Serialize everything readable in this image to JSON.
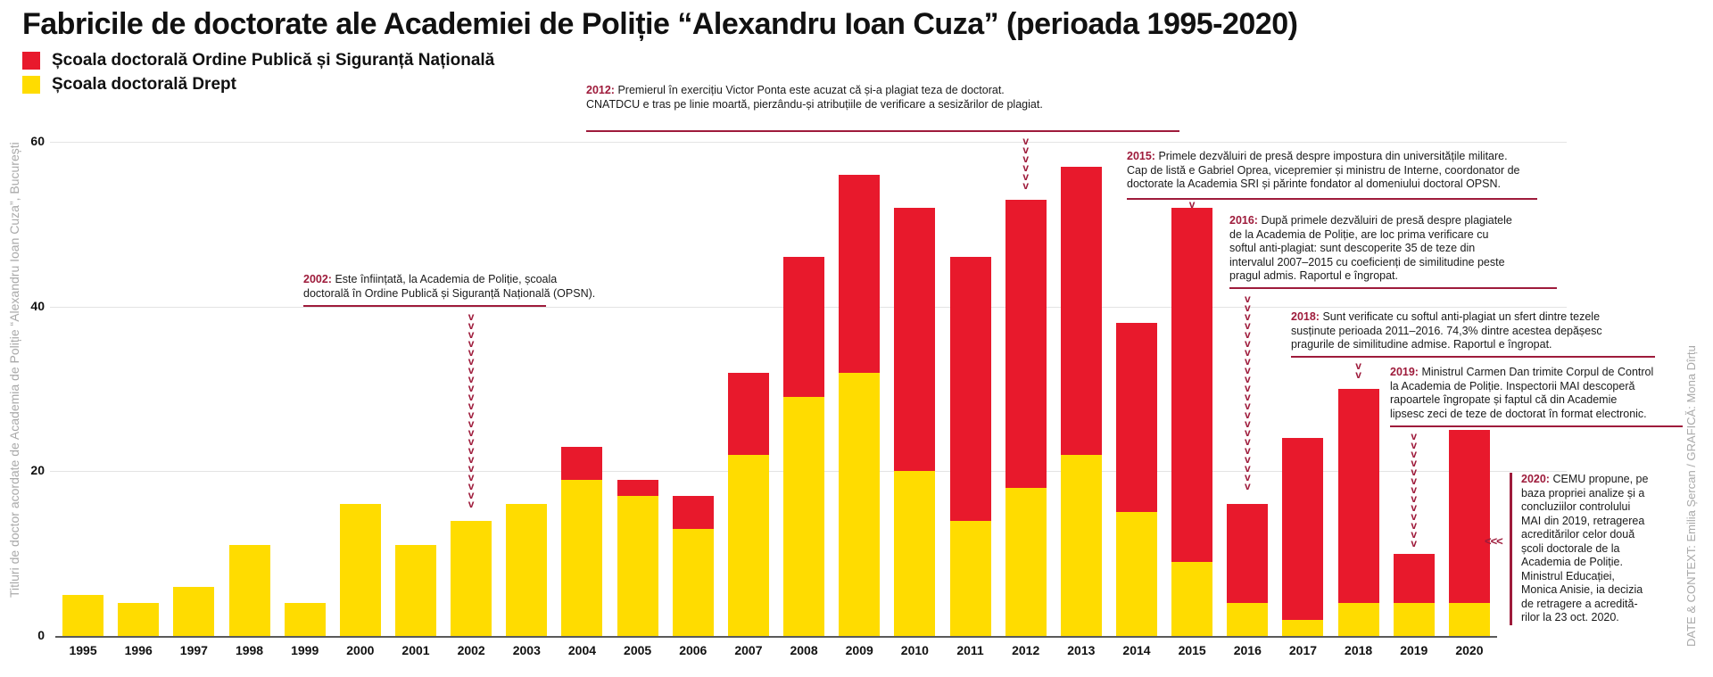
{
  "title": "Fabricile de doctorate ale Academiei de Poliție “Alexandru Ioan Cuza” (perioada 1995-2020)",
  "legend": {
    "items": [
      {
        "label": "Școala doctorală Ordine Publică și Siguranță Națională",
        "color": "#E8192C"
      },
      {
        "label": "Școala doctorală Drept",
        "color": "#FFDC00"
      }
    ]
  },
  "y_axis": {
    "title": "Titluri de doctor acordate de Academia de Poliție “Alexandru Ioan Cuza”, București",
    "ticks": [
      0,
      20,
      40,
      60
    ]
  },
  "credit": "DATE & CONTEXT: Emilia Șercan / GRAFICĂ: Mona Dîrțu",
  "colors": {
    "red": "#E8192C",
    "yellow": "#FFDC00",
    "annotation": "#9E1B3B",
    "gridline": "#e4e4e4",
    "axis_line": "#5a5a5a",
    "muted_text": "#a9a9a9"
  },
  "chart_data": {
    "type": "bar",
    "stacked": true,
    "title": "Fabricile de doctorate ale Academiei de Poliție “Alexandru Ioan Cuza” (perioada 1995-2020)",
    "categories": [
      1995,
      1996,
      1997,
      1998,
      1999,
      2000,
      2001,
      2002,
      2003,
      2004,
      2005,
      2006,
      2007,
      2008,
      2009,
      2010,
      2011,
      2012,
      2013,
      2014,
      2015,
      2016,
      2017,
      2018,
      2019,
      2020
    ],
    "series": [
      {
        "name": "Școala doctorală Drept",
        "color": "#FFDC00",
        "values": [
          5,
          4,
          6,
          11,
          4,
          16,
          11,
          14,
          16,
          19,
          17,
          13,
          22,
          29,
          32,
          20,
          14,
          18,
          22,
          15,
          9,
          4,
          2,
          4,
          4,
          4
        ]
      },
      {
        "name": "Școala doctorală Ordine Publică și Siguranță Națională",
        "color": "#E8192C",
        "values": [
          0,
          0,
          0,
          0,
          0,
          0,
          0,
          0,
          0,
          4,
          2,
          4,
          10,
          17,
          24,
          32,
          32,
          35,
          35,
          23,
          43,
          12,
          22,
          26,
          6,
          21
        ]
      }
    ],
    "totals": [
      5,
      4,
      6,
      11,
      4,
      16,
      11,
      14,
      16,
      23,
      19,
      17,
      32,
      46,
      56,
      52,
      46,
      53,
      57,
      38,
      52,
      16,
      24,
      30,
      10,
      25
    ],
    "ylim": [
      0,
      60
    ],
    "grid": true,
    "legend_position": "top-left",
    "ylabel": "Titluri de doctor acordate de Academia de Poliție “Alexandru Ioan Cuza”, București",
    "xlabel": ""
  },
  "annotations": [
    {
      "id": "2002",
      "year": "2002",
      "text": "Este înființată, la Academia de Poliție, școala\ndoctorală în Ordine Publică și Siguranță Națională (OPSN)."
    },
    {
      "id": "2012",
      "year": "2012",
      "text": "Premierul în exercițiu Victor Ponta este acuzat că și-a plagiat teza de doctorat.\nCNATDCU e tras pe linie moartă, pierzându-și atribuțiile de verificare a sesizărilor de plagiat."
    },
    {
      "id": "2015",
      "year": "2015",
      "text": "Primele dezvăluiri de presă despre impostura din universitățile militare.\nCap de listă e Gabriel Oprea, vicepremier și ministru de Interne, coordonator de\ndoctorate la Academia SRI și părinte fondator al domeniului doctoral OPSN."
    },
    {
      "id": "2016",
      "year": "2016",
      "text": "După primele dezvăluiri de presă despre plagiatele\nde la Academia de Poliție, are loc prima verificare cu\nsoftul anti-plagiat: sunt descoperite 35 de teze din\nintervalul 2007–2015 cu coeficienți de similitudine peste\npragul admis. Raportul e îngropat."
    },
    {
      "id": "2018",
      "year": "2018",
      "text": "Sunt verificate cu softul anti-plagiat un sfert dintre tezele\nsusținute perioada 2011–2016. 74,3% dintre acestea depășesc\npragurile de similitudine admise. Raportul e îngropat."
    },
    {
      "id": "2019",
      "year": "2019",
      "text": "Ministrul Carmen Dan trimite Corpul de Control\nla Academia de Poliție. Inspectorii MAI descoperă\nrapoartele îngropate și faptul că din Academie\nlipsesc zeci de teze de doctorat în format electronic."
    },
    {
      "id": "2020",
      "year": "2020",
      "marker": "<<<",
      "text": "CEMU propune, pe\nbaza propriei analize și a\nconcluziilor controlului\nMAI din 2019, retragerea\nacreditărilor celor două\nșcoli doctorale de la\nAcademia de Poliție.\nMinistrul Educației,\nMonica Anisie, ia decizia\nde retragere a acredită-\nrilor la 23 oct. 2020."
    }
  ]
}
